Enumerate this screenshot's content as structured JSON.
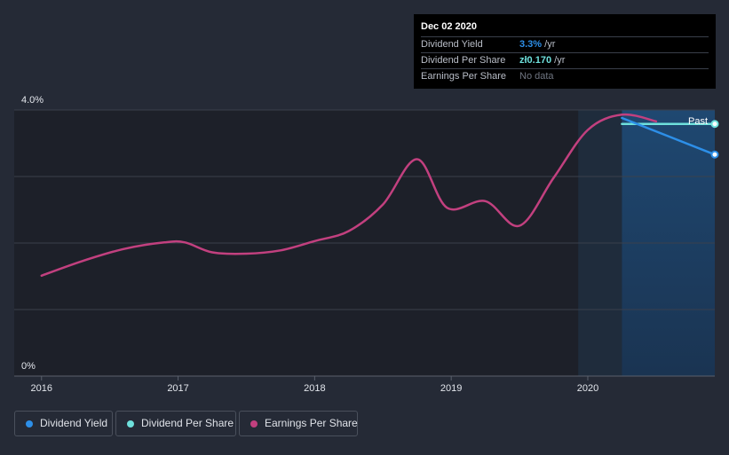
{
  "chart_data": {
    "type": "line",
    "ylim": [
      0,
      4.0
    ],
    "y_ticks": [
      {
        "value": 4.0,
        "label": "4.0%"
      },
      {
        "value": 0,
        "label": "0%"
      }
    ],
    "x_ticks": [
      {
        "value": 2016.0,
        "label": "2016"
      },
      {
        "value": 2017.0,
        "label": "2017"
      },
      {
        "value": 2018.0,
        "label": "2018"
      },
      {
        "value": 2019.0,
        "label": "2019"
      },
      {
        "value": 2020.0,
        "label": "2020"
      }
    ],
    "xlim": [
      2015.8,
      2020.93
    ],
    "past_start": 2019.93,
    "forecast_start": 2020.25,
    "past_label": "Past",
    "series": [
      {
        "name": "Earnings Per Share",
        "color": "#c2407f",
        "points": [
          [
            2016.0,
            1.51
          ],
          [
            2016.3,
            1.73
          ],
          [
            2016.6,
            1.91
          ],
          [
            2016.9,
            2.01
          ],
          [
            2017.05,
            2.01
          ],
          [
            2017.25,
            1.86
          ],
          [
            2017.5,
            1.84
          ],
          [
            2017.75,
            1.89
          ],
          [
            2018.0,
            2.03
          ],
          [
            2018.25,
            2.18
          ],
          [
            2018.5,
            2.58
          ],
          [
            2018.75,
            3.26
          ],
          [
            2018.97,
            2.53
          ],
          [
            2019.25,
            2.63
          ],
          [
            2019.5,
            2.26
          ],
          [
            2019.75,
            2.98
          ],
          [
            2020.0,
            3.7
          ],
          [
            2020.25,
            3.93
          ],
          [
            2020.5,
            3.83
          ]
        ]
      },
      {
        "name": "Dividend Per Share",
        "color": "#6ee0dc",
        "points": [
          [
            2020.25,
            3.79
          ],
          [
            2020.93,
            3.79
          ]
        ]
      },
      {
        "name": "Dividend Yield",
        "color": "#2d8fe8",
        "points": [
          [
            2020.25,
            3.88
          ],
          [
            2020.93,
            3.33
          ]
        ]
      }
    ]
  },
  "tooltip": {
    "date": "Dec 02 2020",
    "rows": [
      {
        "label": "Dividend Yield",
        "value": "3.3%",
        "unit": " /yr"
      },
      {
        "label": "Dividend Per Share",
        "value": "zł0.170",
        "unit": " /yr"
      },
      {
        "label": "Earnings Per Share",
        "value": "No data",
        "unit": ""
      }
    ]
  },
  "legend": [
    {
      "label": "Dividend Yield",
      "color": "#2d8fe8"
    },
    {
      "label": "Dividend Per Share",
      "color": "#6ee0dc"
    },
    {
      "label": "Earnings Per Share",
      "color": "#c2407f"
    }
  ]
}
